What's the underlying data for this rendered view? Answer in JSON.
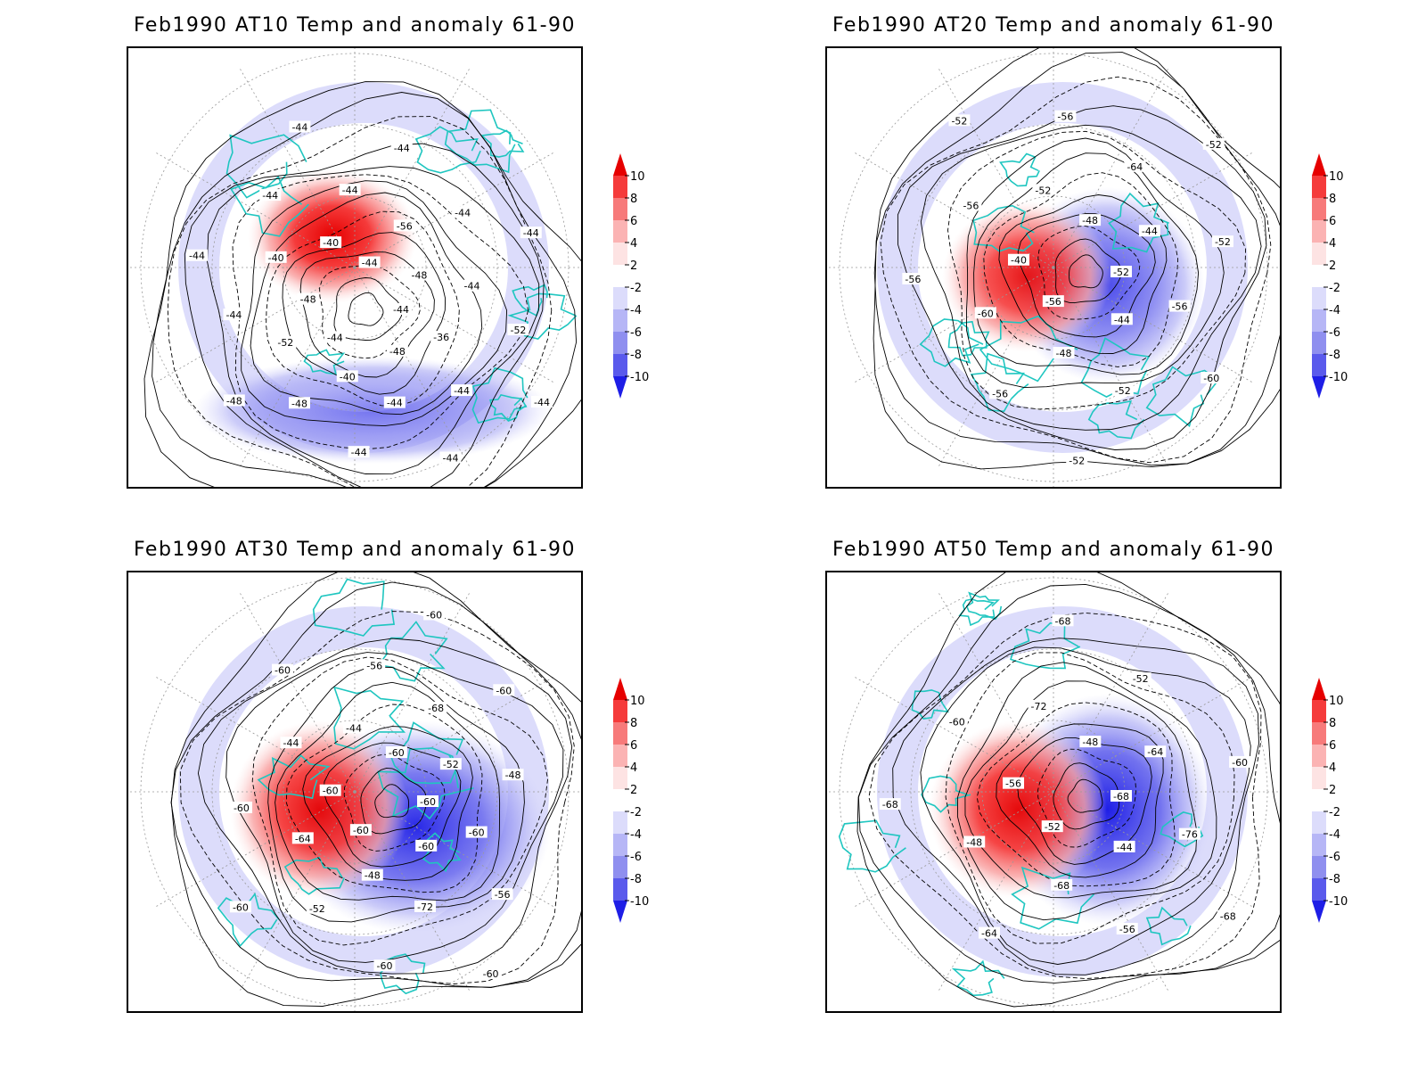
{
  "panels": [
    {
      "title": "Feb1990 AT10 Temp and anomaly 61-90",
      "warm_strength": 1.0,
      "cold_strength": 0.55,
      "labels": [
        "-44",
        "-44",
        "-44",
        "-48",
        "-48",
        "-48",
        "-40",
        "-40",
        "-36",
        "-52",
        "-56",
        "-44",
        "-40",
        "-44",
        "-48",
        "-44",
        "-44",
        "-44",
        "-44",
        "-44",
        "-44",
        "-52",
        "-48",
        "-44",
        "-44",
        "-44",
        "-44",
        "-40",
        "-44",
        "-44"
      ]
    },
    {
      "title": "Feb1990 AT20 Temp and anomaly 61-90",
      "warm_strength": 0.9,
      "cold_strength": 0.8,
      "labels": [
        "-52",
        "-56",
        "-48",
        "-44",
        "-40",
        "-44",
        "-48",
        "-52",
        "-56",
        "-60",
        "-64",
        "-52",
        "-56",
        "-52",
        "-56",
        "-56",
        "-60",
        "-56",
        "-52",
        "-52",
        "-52"
      ]
    },
    {
      "title": "Feb1990 AT30 Temp and anomaly 61-90",
      "warm_strength": 0.95,
      "cold_strength": 0.95,
      "labels": [
        "-60",
        "-60",
        "-60",
        "-60",
        "-60",
        "-52",
        "-48",
        "-44",
        "-60",
        "-64",
        "-68",
        "-72",
        "-44",
        "-48",
        "-52",
        "-56",
        "-56",
        "-60",
        "-60",
        "-60",
        "-60",
        "-60",
        "-60",
        "-60",
        "-60"
      ]
    },
    {
      "title": "Feb1990 AT50 Temp and anomaly 61-90",
      "warm_strength": 0.95,
      "cold_strength": 1.0,
      "labels": [
        "-68",
        "-52",
        "-48",
        "-44",
        "-56",
        "-64",
        "-68",
        "-72",
        "-76",
        "-48",
        "-52",
        "-56",
        "-60",
        "-60",
        "-64",
        "-68",
        "-68",
        "-68"
      ]
    }
  ],
  "colorbar": {
    "levels": [
      "10",
      "8",
      "6",
      "4",
      "2",
      "-2",
      "-4",
      "-6",
      "-8",
      "-10"
    ],
    "colors": [
      "#e60000",
      "#f53b3b",
      "#f77a7a",
      "#fbb3b3",
      "#fde3e3",
      "#ffffff",
      "#dcdcfb",
      "#b6b6f6",
      "#8f8fef",
      "#5a5aec",
      "#1e1ee6"
    ]
  },
  "style": {
    "coast_color": "#1fc6c0",
    "contour_color": "#000000",
    "grid_color": "#999999"
  }
}
